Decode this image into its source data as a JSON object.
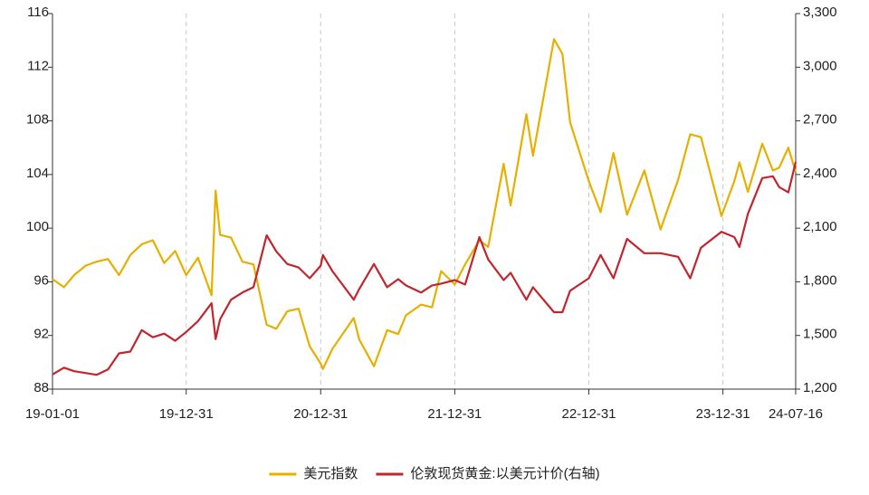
{
  "chart_data": {
    "type": "line",
    "x": [
      "19-01-01",
      "19-02-01",
      "19-03-01",
      "19-04-01",
      "19-05-01",
      "19-06-01",
      "19-07-01",
      "19-08-01",
      "19-09-01",
      "19-10-01",
      "19-11-01",
      "19-12-01",
      "19-12-31",
      "20-02-01",
      "20-03-09",
      "20-03-20",
      "20-04-01",
      "20-05-01",
      "20-06-01",
      "20-07-01",
      "20-08-06",
      "20-09-01",
      "20-10-01",
      "20-11-01",
      "20-12-01",
      "20-12-31",
      "21-01-06",
      "21-02-01",
      "21-03-31",
      "21-04-15",
      "21-05-25",
      "21-06-30",
      "21-07-30",
      "21-08-20",
      "21-09-30",
      "21-10-30",
      "21-11-24",
      "21-12-31",
      "22-01-28",
      "22-03-08",
      "22-04-01",
      "22-05-13",
      "22-06-01",
      "22-07-14",
      "22-08-01",
      "22-09-27",
      "22-10-20",
      "22-11-10",
      "22-12-31",
      "23-02-01",
      "23-03-08",
      "23-04-14",
      "23-05-31",
      "23-07-14",
      "23-08-31",
      "23-10-03",
      "23-11-01",
      "23-12-27",
      "24-01-31",
      "24-02-14",
      "24-03-08",
      "24-04-16",
      "24-05-15",
      "24-06-01",
      "24-06-26",
      "24-07-16"
    ],
    "series": [
      {
        "name": "美元指数",
        "color": "#e5b000",
        "axis": "y",
        "values": [
          96.2,
          95.6,
          96.5,
          97.2,
          97.5,
          97.7,
          96.5,
          98.0,
          98.8,
          99.1,
          97.4,
          98.3,
          96.5,
          97.8,
          95.0,
          102.8,
          99.5,
          99.3,
          97.5,
          97.3,
          92.8,
          92.5,
          93.8,
          94.0,
          91.2,
          89.9,
          89.5,
          91.0,
          93.3,
          91.7,
          89.7,
          92.4,
          92.1,
          93.5,
          94.3,
          94.1,
          96.8,
          95.8,
          97.3,
          99.1,
          98.6,
          104.8,
          101.7,
          108.5,
          105.4,
          114.1,
          113.0,
          107.9,
          103.5,
          101.2,
          105.6,
          101.0,
          104.3,
          99.9,
          103.6,
          107.0,
          106.8,
          100.9,
          103.5,
          104.9,
          102.7,
          106.3,
          104.3,
          104.5,
          106.0,
          104.2
        ]
      },
      {
        "name": "伦敦现货黄金:以美元计价(右轴)",
        "color": "#c0262d",
        "axis": "y2",
        "values": [
          1282,
          1320,
          1300,
          1290,
          1280,
          1310,
          1400,
          1410,
          1530,
          1490,
          1510,
          1470,
          1520,
          1580,
          1680,
          1480,
          1590,
          1700,
          1740,
          1770,
          2060,
          1970,
          1900,
          1880,
          1820,
          1890,
          1950,
          1860,
          1700,
          1760,
          1900,
          1770,
          1815,
          1780,
          1740,
          1780,
          1790,
          1810,
          1785,
          2050,
          1925,
          1810,
          1850,
          1700,
          1770,
          1630,
          1630,
          1750,
          1820,
          1950,
          1820,
          2040,
          1960,
          1960,
          1940,
          1820,
          1990,
          2080,
          2050,
          1995,
          2180,
          2380,
          2390,
          2330,
          2300,
          2470
        ]
      }
    ],
    "xlim": [
      "19-01-01",
      "24-07-16"
    ],
    "xticks": [
      "19-01-01",
      "19-12-31",
      "20-12-31",
      "21-12-31",
      "22-12-31",
      "23-12-31",
      "24-07-16"
    ],
    "ylim": [
      88,
      116
    ],
    "yticks": [
      88,
      92,
      96,
      100,
      104,
      108,
      112,
      116
    ],
    "y2lim": [
      1200,
      3300
    ],
    "y2ticks": [
      {
        "value": 1200,
        "label": "1,200"
      },
      {
        "value": 1500,
        "label": "1,500"
      },
      {
        "value": 1800,
        "label": "1,800"
      },
      {
        "value": 2100,
        "label": "2,100"
      },
      {
        "value": 2400,
        "label": "2,400"
      },
      {
        "value": 2700,
        "label": "2,700"
      },
      {
        "value": 3000,
        "label": "3,000"
      },
      {
        "value": 3300,
        "label": "3,300"
      }
    ],
    "grid": "x",
    "legend": "bottom"
  }
}
